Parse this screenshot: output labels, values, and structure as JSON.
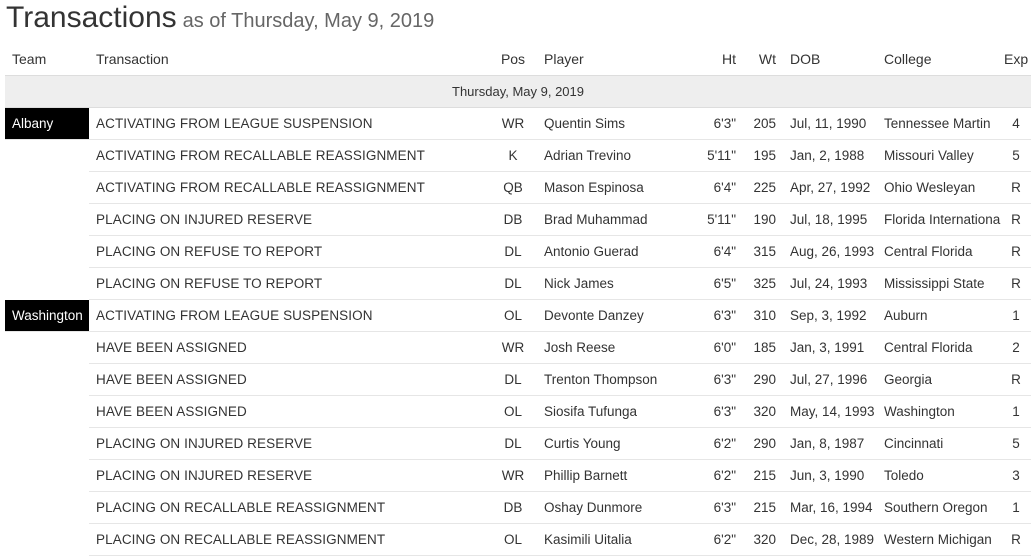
{
  "page": {
    "title": "Transactions",
    "subtitle": "as of Thursday, May 9, 2019"
  },
  "table": {
    "headers": {
      "team": "Team",
      "transaction": "Transaction",
      "pos": "Pos",
      "player": "Player",
      "ht": "Ht",
      "wt": "Wt",
      "dob": "DOB",
      "college": "College",
      "exp": "Exp"
    },
    "date_group": "Thursday, May 9, 2019",
    "rows": [
      {
        "team": "Albany",
        "transaction": "ACTIVATING FROM LEAGUE SUSPENSION",
        "pos": "WR",
        "player": "Quentin Sims",
        "ht": "6'3\"",
        "wt": "205",
        "dob": "Jul, 11, 1990",
        "college": "Tennessee Martin",
        "exp": "4"
      },
      {
        "team": "",
        "transaction": "ACTIVATING FROM RECALLABLE REASSIGNMENT",
        "pos": "K",
        "player": "Adrian Trevino",
        "ht": "5'11\"",
        "wt": "195",
        "dob": "Jan, 2, 1988",
        "college": "Missouri Valley",
        "exp": "5"
      },
      {
        "team": "",
        "transaction": "ACTIVATING FROM RECALLABLE REASSIGNMENT",
        "pos": "QB",
        "player": "Mason Espinosa",
        "ht": "6'4\"",
        "wt": "225",
        "dob": "Apr, 27, 1992",
        "college": "Ohio Wesleyan",
        "exp": "R"
      },
      {
        "team": "",
        "transaction": "PLACING ON INJURED RESERVE",
        "pos": "DB",
        "player": "Brad Muhammad",
        "ht": "5'11\"",
        "wt": "190",
        "dob": "Jul, 18, 1995",
        "college": "Florida International",
        "exp": "R"
      },
      {
        "team": "",
        "transaction": "PLACING ON REFUSE TO REPORT",
        "pos": "DL",
        "player": "Antonio Guerad",
        "ht": "6'4\"",
        "wt": "315",
        "dob": "Aug, 26, 1993",
        "college": "Central Florida",
        "exp": "R"
      },
      {
        "team": "",
        "transaction": "PLACING ON REFUSE TO REPORT",
        "pos": "DL",
        "player": "Nick James",
        "ht": "6'5\"",
        "wt": "325",
        "dob": "Jul, 24, 1993",
        "college": "Mississippi State",
        "exp": "R"
      },
      {
        "team": "Washington",
        "transaction": "ACTIVATING FROM LEAGUE SUSPENSION",
        "pos": "OL",
        "player": "Devonte Danzey",
        "ht": "6'3\"",
        "wt": "310",
        "dob": "Sep, 3, 1992",
        "college": "Auburn",
        "exp": "1"
      },
      {
        "team": "",
        "transaction": "HAVE BEEN ASSIGNED",
        "pos": "WR",
        "player": "Josh Reese",
        "ht": "6'0\"",
        "wt": "185",
        "dob": "Jan, 3, 1991",
        "college": "Central Florida",
        "exp": "2"
      },
      {
        "team": "",
        "transaction": "HAVE BEEN ASSIGNED",
        "pos": "DL",
        "player": "Trenton Thompson",
        "ht": "6'3\"",
        "wt": "290",
        "dob": "Jul, 27, 1996",
        "college": "Georgia",
        "exp": "R"
      },
      {
        "team": "",
        "transaction": "HAVE BEEN ASSIGNED",
        "pos": "OL",
        "player": "Siosifa Tufunga",
        "ht": "6'3\"",
        "wt": "320",
        "dob": "May, 14, 1993",
        "college": "Washington",
        "exp": "1"
      },
      {
        "team": "",
        "transaction": "PLACING ON INJURED RESERVE",
        "pos": "DL",
        "player": "Curtis Young",
        "ht": "6'2\"",
        "wt": "290",
        "dob": "Jan, 8, 1987",
        "college": "Cincinnati",
        "exp": "5"
      },
      {
        "team": "",
        "transaction": "PLACING ON INJURED RESERVE",
        "pos": "WR",
        "player": "Phillip Barnett",
        "ht": "6'2\"",
        "wt": "215",
        "dob": "Jun, 3, 1990",
        "college": "Toledo",
        "exp": "3"
      },
      {
        "team": "",
        "transaction": "PLACING ON RECALLABLE REASSIGNMENT",
        "pos": "DB",
        "player": "Oshay Dunmore",
        "ht": "6'3\"",
        "wt": "215",
        "dob": "Mar, 16, 1994",
        "college": "Southern Oregon",
        "exp": "1"
      },
      {
        "team": "",
        "transaction": "PLACING ON RECALLABLE REASSIGNMENT",
        "pos": "OL",
        "player": "Kasimili Uitalia",
        "ht": "6'2\"",
        "wt": "320",
        "dob": "Dec, 28, 1989",
        "college": "Western Michigan",
        "exp": "R"
      }
    ]
  }
}
